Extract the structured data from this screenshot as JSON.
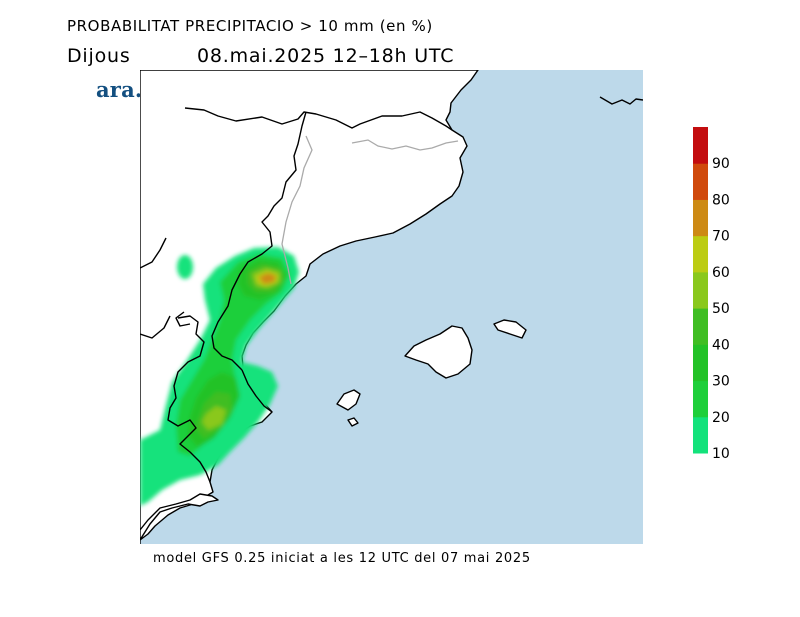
{
  "header": {
    "title": "PROBABILITAT PRECIPITACIO > 10 mm (en %)",
    "day": "Dijous",
    "datetime": "08.mai.2025  12–18h  UTC"
  },
  "logo": {
    "text": "ara.cat",
    "color": "#134f80"
  },
  "footer": {
    "text": "model GFS 0.25 iniciat a les 12 UTC del 07 mai 2025"
  },
  "legend": {
    "unit": "%",
    "ticks": [
      "10",
      "20",
      "30",
      "40",
      "50",
      "60",
      "70",
      "80",
      "90"
    ],
    "bins": [
      {
        "from": 10,
        "to": 20,
        "color": "#13e27b"
      },
      {
        "from": 20,
        "to": 30,
        "color": "#1ecf3a"
      },
      {
        "from": 30,
        "to": 40,
        "color": "#23c227"
      },
      {
        "from": 40,
        "to": 50,
        "color": "#40be23"
      },
      {
        "from": 50,
        "to": 60,
        "color": "#8ac81c"
      },
      {
        "from": 60,
        "to": 70,
        "color": "#bccc13"
      },
      {
        "from": 70,
        "to": 80,
        "color": "#cd8a14"
      },
      {
        "from": 80,
        "to": 90,
        "color": "#d04a0c"
      },
      {
        "from": 90,
        "to": 100,
        "color": "#c30d0f"
      }
    ]
  },
  "map": {
    "sea_color": "#bdd9ea",
    "land_color": "#ffffff",
    "coast_color": "#000000",
    "border_color": "#aaaaaa"
  }
}
